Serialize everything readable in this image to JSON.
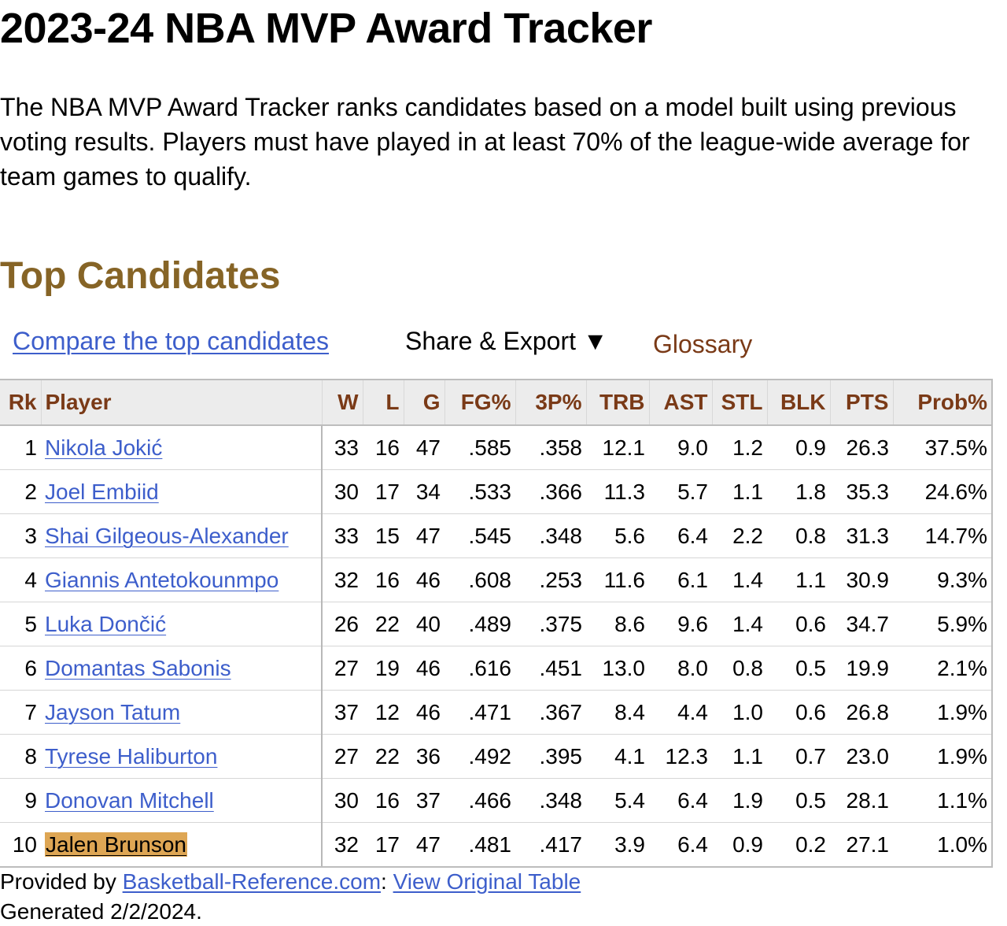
{
  "page": {
    "title": "2023-24 NBA MVP Award Tracker",
    "intro": "The NBA MVP Award Tracker ranks candidates based on a model built using previous voting results. Players must have played in at least 70% of the league-wide average for team games to qualify."
  },
  "section": {
    "title": "Top Candidates"
  },
  "toolbar": {
    "compare_label": "Compare the top candidates",
    "share_label": "Share & Export ▼",
    "glossary_label": "Glossary"
  },
  "table": {
    "headers": [
      "Rk",
      "Player",
      "W",
      "L",
      "G",
      "FG%",
      "3P%",
      "TRB",
      "AST",
      "STL",
      "BLK",
      "PTS",
      "Prob%"
    ],
    "rows": [
      {
        "rk": "1",
        "player": "Nikola Jokić",
        "w": "33",
        "l": "16",
        "g": "47",
        "fg": ".585",
        "tp": ".358",
        "trb": "12.1",
        "ast": "9.0",
        "stl": "1.2",
        "blk": "0.9",
        "pts": "26.3",
        "prob": "37.5%"
      },
      {
        "rk": "2",
        "player": "Joel Embiid",
        "w": "30",
        "l": "17",
        "g": "34",
        "fg": ".533",
        "tp": ".366",
        "trb": "11.3",
        "ast": "5.7",
        "stl": "1.1",
        "blk": "1.8",
        "pts": "35.3",
        "prob": "24.6%"
      },
      {
        "rk": "3",
        "player": "Shai Gilgeous-Alexander",
        "w": "33",
        "l": "15",
        "g": "47",
        "fg": ".545",
        "tp": ".348",
        "trb": "5.6",
        "ast": "6.4",
        "stl": "2.2",
        "blk": "0.8",
        "pts": "31.3",
        "prob": "14.7%"
      },
      {
        "rk": "4",
        "player": "Giannis Antetokounmpo",
        "w": "32",
        "l": "16",
        "g": "46",
        "fg": ".608",
        "tp": ".253",
        "trb": "11.6",
        "ast": "6.1",
        "stl": "1.4",
        "blk": "1.1",
        "pts": "30.9",
        "prob": "9.3%"
      },
      {
        "rk": "5",
        "player": "Luka Dončić",
        "w": "26",
        "l": "22",
        "g": "40",
        "fg": ".489",
        "tp": ".375",
        "trb": "8.6",
        "ast": "9.6",
        "stl": "1.4",
        "blk": "0.6",
        "pts": "34.7",
        "prob": "5.9%"
      },
      {
        "rk": "6",
        "player": "Domantas Sabonis",
        "w": "27",
        "l": "19",
        "g": "46",
        "fg": ".616",
        "tp": ".451",
        "trb": "13.0",
        "ast": "8.0",
        "stl": "0.8",
        "blk": "0.5",
        "pts": "19.9",
        "prob": "2.1%"
      },
      {
        "rk": "7",
        "player": "Jayson Tatum",
        "w": "37",
        "l": "12",
        "g": "46",
        "fg": ".471",
        "tp": ".367",
        "trb": "8.4",
        "ast": "4.4",
        "stl": "1.0",
        "blk": "0.6",
        "pts": "26.8",
        "prob": "1.9%"
      },
      {
        "rk": "8",
        "player": "Tyrese Haliburton",
        "w": "27",
        "l": "22",
        "g": "36",
        "fg": ".492",
        "tp": ".395",
        "trb": "4.1",
        "ast": "12.3",
        "stl": "1.1",
        "blk": "0.7",
        "pts": "23.0",
        "prob": "1.9%"
      },
      {
        "rk": "9",
        "player": "Donovan Mitchell",
        "w": "30",
        "l": "16",
        "g": "37",
        "fg": ".466",
        "tp": ".348",
        "trb": "5.4",
        "ast": "6.4",
        "stl": "1.9",
        "blk": "0.5",
        "pts": "28.1",
        "prob": "1.1%"
      },
      {
        "rk": "10",
        "player": "Jalen Brunson",
        "w": "32",
        "l": "17",
        "g": "47",
        "fg": ".481",
        "tp": ".417",
        "trb": "3.9",
        "ast": "6.4",
        "stl": "0.9",
        "blk": "0.2",
        "pts": "27.1",
        "prob": "1.0%",
        "highlighted": true
      }
    ]
  },
  "footer": {
    "provided_prefix": "Provided by ",
    "source_link": "Basketball-Reference.com",
    "separator": ": ",
    "view_link": "View Original Table",
    "generated": "Generated 2/2/2024."
  },
  "colors": {
    "section_title": "#866426",
    "link": "#3d5ecb",
    "header_text": "#7a3a17",
    "header_bg": "#ececec",
    "highlight": "#dea654"
  }
}
